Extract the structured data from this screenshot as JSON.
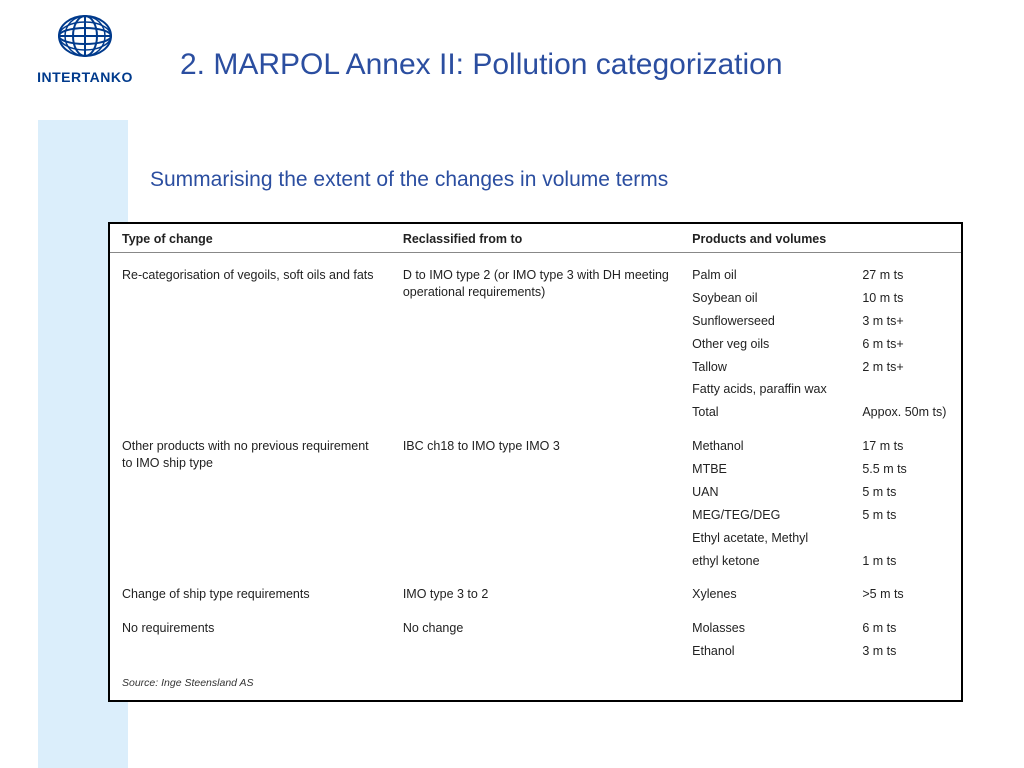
{
  "colors": {
    "title": "#2b4ea0",
    "subtitle": "#2b4ea0",
    "logo": "#003a8c",
    "left_band": "#dbeefb",
    "table_border": "#000000",
    "header_border": "#888888",
    "text": "#222222",
    "background": "#ffffff"
  },
  "typography": {
    "title_fontsize": 30,
    "subtitle_fontsize": 21,
    "table_fontsize": 12.5,
    "source_fontsize": 10.5,
    "font_family": "Arial"
  },
  "logo": {
    "brand": "INTERTANKO",
    "icon_name": "globe-icon"
  },
  "title": "2. MARPOL Annex II: Pollution categorization",
  "subtitle": "Summarising the extent of the changes in volume terms",
  "table": {
    "type": "table",
    "columns": [
      "Type of change",
      "Reclassified from to",
      "Products and volumes"
    ],
    "sections": [
      {
        "type_of_change": "Re-categorisation of vegoils, soft oils and fats",
        "reclassified": "D to IMO type 2 (or IMO type 3 with DH meeting operational requirements)",
        "products": [
          {
            "name": "Palm oil",
            "volume": "27 m ts"
          },
          {
            "name": "Soybean oil",
            "volume": "10 m ts"
          },
          {
            "name": "Sunflowerseed",
            "volume": "3 m ts+"
          },
          {
            "name": "Other veg oils",
            "volume": "6 m ts+"
          },
          {
            "name": "Tallow",
            "volume": "2 m ts+"
          },
          {
            "name": "Fatty acids, paraffin wax",
            "volume": ""
          },
          {
            "name": "Total",
            "volume": "Appox. 50m ts)"
          }
        ]
      },
      {
        "type_of_change": "Other products with no previous requirement to IMO ship type",
        "reclassified": "IBC ch18  to IMO type IMO 3",
        "products": [
          {
            "name": "Methanol",
            "volume": "17 m ts"
          },
          {
            "name": "MTBE",
            "volume": "5.5 m ts"
          },
          {
            "name": "UAN",
            "volume": "5 m ts"
          },
          {
            "name": "MEG/TEG/DEG",
            "volume": "5 m ts"
          },
          {
            "name": "Ethyl acetate, Methyl",
            "volume": ""
          },
          {
            "name": "ethyl ketone",
            "volume": "1 m ts"
          }
        ]
      },
      {
        "type_of_change": "Change of ship type requirements",
        "reclassified": "IMO type 3 to 2",
        "products": [
          {
            "name": "Xylenes",
            "volume": ">5  m ts"
          }
        ]
      },
      {
        "type_of_change": "No requirements",
        "reclassified": "No change",
        "products": [
          {
            "name": "Molasses",
            "volume": "6 m ts"
          },
          {
            "name": "Ethanol",
            "volume": "3 m ts"
          }
        ]
      }
    ],
    "source": "Source: Inge Steensland AS"
  }
}
